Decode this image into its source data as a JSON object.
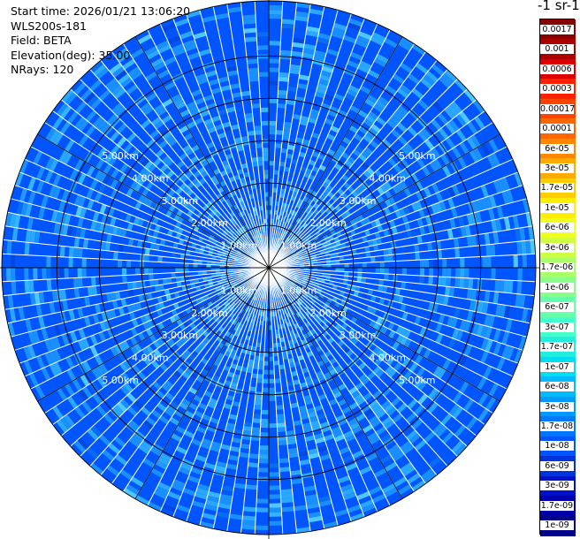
{
  "header": {
    "start_time": "Start time: 2026/01/21 13:06:20",
    "instrument": "WLS200s-181",
    "field": "Field: BETA",
    "elevation": "Elevation(deg): 35.00",
    "nrays": "NRays: 120"
  },
  "colorbar": {
    "title": "-1 sr-1",
    "labels": [
      "0.0017",
      "0.001",
      "0.0006",
      "0.0003",
      "0.00017",
      "0.0001",
      "6e-05",
      "3e-05",
      "1.7e-05",
      "1e-05",
      "6e-06",
      "3e-06",
      "1.7e-06",
      "1e-06",
      "6e-07",
      "3e-07",
      "1.7e-07",
      "1e-07",
      "6e-08",
      "3e-08",
      "1.7e-08",
      "1e-08",
      "6e-09",
      "3e-09",
      "1.7e-09",
      "1e-09"
    ],
    "colors": [
      "#880000",
      "#aa0000",
      "#dd0000",
      "#ff2200",
      "#ff4400",
      "#ff6600",
      "#ff8800",
      "#ffaa00",
      "#ffcc00",
      "#ffee00",
      "#eeff22",
      "#ccff44",
      "#aaff66",
      "#88ff88",
      "#66ffaa",
      "#44ffcc",
      "#22eedd",
      "#00ddee",
      "#00bbff",
      "#0099ff",
      "#0077ff",
      "#0055ff",
      "#0033dd",
      "#0011cc",
      "#0000aa",
      "#000088"
    ]
  },
  "chart_data": {
    "type": "heatmap",
    "projection": "polar-ppi",
    "nrays": 120,
    "range_rings_km": [
      1,
      2,
      3,
      4,
      5
    ],
    "ring_labels": [
      "1.00km",
      "2.00km",
      "3.00km",
      "4.00km",
      "5.00km"
    ],
    "max_range_km": 6.3,
    "field": "BETA",
    "typical_value_range": [
      "3e-08",
      "1e-07"
    ],
    "dominant_colors": [
      "#0055ff",
      "#1a8fff",
      "#2aa7ff"
    ],
    "grid_lines": "range rings every 1 km, radial lines every 30 deg"
  }
}
